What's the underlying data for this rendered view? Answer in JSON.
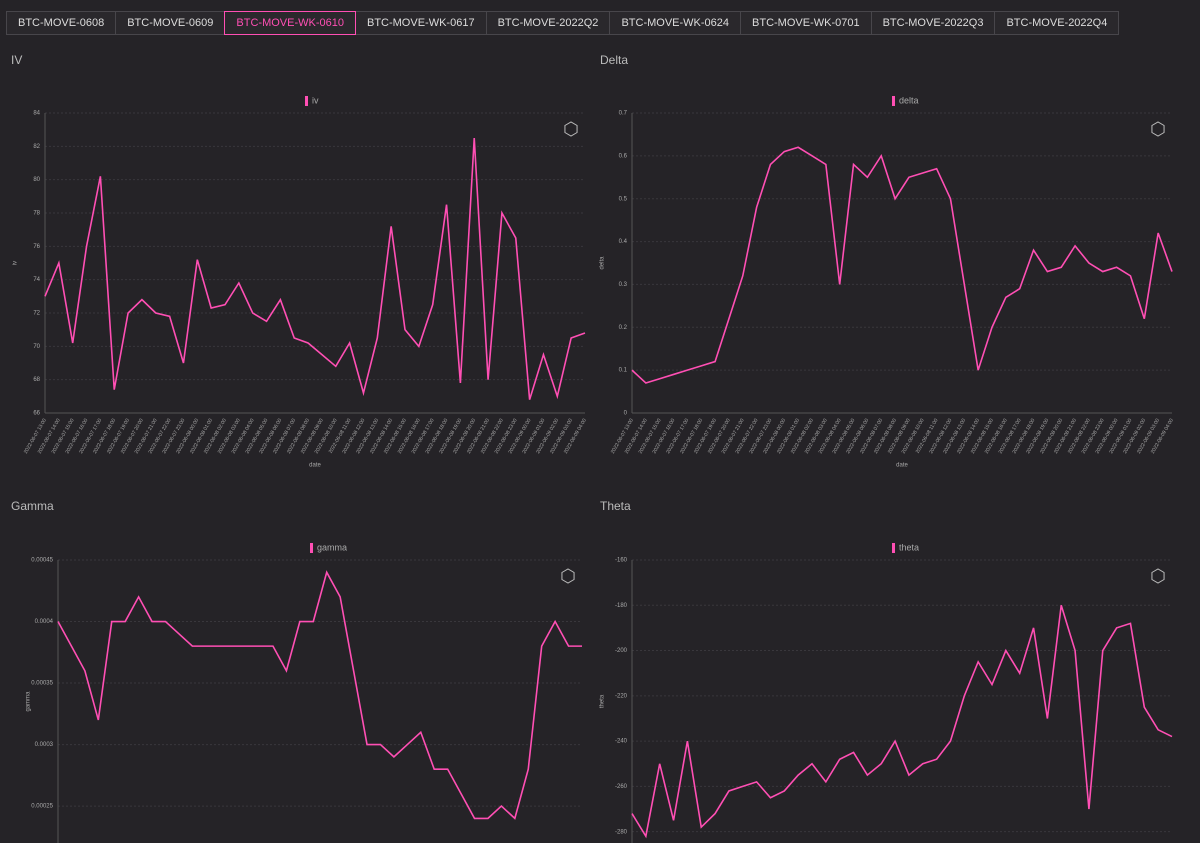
{
  "tabs": [
    "BTC-MOVE-0608",
    "BTC-MOVE-0609",
    "BTC-MOVE-WK-0610",
    "BTC-MOVE-WK-0617",
    "BTC-MOVE-2022Q2",
    "BTC-MOVE-WK-0624",
    "BTC-MOVE-WK-0701",
    "BTC-MOVE-2022Q3",
    "BTC-MOVE-2022Q4"
  ],
  "active_tab": 2,
  "chart_data": [
    {
      "type": "line",
      "title": "IV",
      "x_label": "date",
      "y_label": "iv",
      "categories": [
        "2022-06-07 13:00",
        "2022-06-07 14:00",
        "2022-06-07 15:00",
        "2022-06-07 16:00",
        "2022-06-07 17:00",
        "2022-06-07 18:00",
        "2022-06-07 19:00",
        "2022-06-07 20:00",
        "2022-06-07 21:00",
        "2022-06-07 22:00",
        "2022-06-07 23:00",
        "2022-06-08 00:00",
        "2022-06-08 01:00",
        "2022-06-08 02:00",
        "2022-06-08 03:00",
        "2022-06-08 04:00",
        "2022-06-08 05:00",
        "2022-06-08 06:00",
        "2022-06-08 07:00",
        "2022-06-08 08:00",
        "2022-06-08 09:00",
        "2022-06-08 10:00",
        "2022-06-08 11:00",
        "2022-06-08 12:00",
        "2022-06-08 13:00",
        "2022-06-08 14:00",
        "2022-06-08 15:00",
        "2022-06-08 16:00",
        "2022-06-08 17:00",
        "2022-06-08 18:00",
        "2022-06-08 19:00",
        "2022-06-08 20:00",
        "2022-06-08 21:00",
        "2022-06-08 22:00",
        "2022-06-08 23:00",
        "2022-06-09 00:00",
        "2022-06-09 01:00",
        "2022-06-09 02:00",
        "2022-06-09 03:00",
        "2022-06-09 04:00"
      ],
      "series": [
        {
          "name": "iv",
          "color": "#ff4fb4",
          "values": [
            73,
            75,
            70.2,
            76,
            80.2,
            67.4,
            72,
            72.8,
            72,
            71.8,
            69,
            75.2,
            72.3,
            72.5,
            73.8,
            72,
            71.5,
            72.8,
            70.5,
            70.2,
            69.5,
            68.8,
            70.2,
            67.2,
            70.5,
            77.2,
            71,
            70,
            72.5,
            78.5,
            67.8,
            82.5,
            68,
            78,
            76.5,
            66.8,
            69.5,
            67,
            70.5,
            70.8
          ]
        }
      ],
      "ylim": [
        66,
        84
      ],
      "yticks": [
        66,
        68,
        70,
        72,
        74,
        76,
        78,
        80,
        82,
        84
      ],
      "grid": true
    },
    {
      "type": "line",
      "title": "Delta",
      "x_label": "date",
      "y_label": "delta",
      "categories": [
        "2022-06-07 13:00",
        "2022-06-07 14:00",
        "2022-06-07 15:00",
        "2022-06-07 16:00",
        "2022-06-07 17:00",
        "2022-06-07 18:00",
        "2022-06-07 19:00",
        "2022-06-07 20:00",
        "2022-06-07 21:00",
        "2022-06-07 22:00",
        "2022-06-07 23:00",
        "2022-06-08 00:00",
        "2022-06-08 01:00",
        "2022-06-08 02:00",
        "2022-06-08 03:00",
        "2022-06-08 04:00",
        "2022-06-08 05:00",
        "2022-06-08 06:00",
        "2022-06-08 07:00",
        "2022-06-08 08:00",
        "2022-06-08 09:00",
        "2022-06-08 10:00",
        "2022-06-08 11:00",
        "2022-06-08 12:00",
        "2022-06-08 13:00",
        "2022-06-08 14:00",
        "2022-06-08 15:00",
        "2022-06-08 16:00",
        "2022-06-08 17:00",
        "2022-06-08 18:00",
        "2022-06-08 19:00",
        "2022-06-08 20:00",
        "2022-06-08 21:00",
        "2022-06-08 22:00",
        "2022-06-08 23:00",
        "2022-06-09 00:00",
        "2022-06-09 01:00",
        "2022-06-09 02:00",
        "2022-06-09 03:00",
        "2022-06-09 04:00"
      ],
      "series": [
        {
          "name": "delta",
          "color": "#ff4fb4",
          "values": [
            0.1,
            0.07,
            0.08,
            0.09,
            0.1,
            0.11,
            0.12,
            0.22,
            0.32,
            0.48,
            0.58,
            0.61,
            0.62,
            0.6,
            0.58,
            0.3,
            0.58,
            0.55,
            0.6,
            0.5,
            0.55,
            0.56,
            0.57,
            0.5,
            0.3,
            0.1,
            0.2,
            0.27,
            0.29,
            0.38,
            0.33,
            0.34,
            0.39,
            0.35,
            0.33,
            0.34,
            0.32,
            0.22,
            0.42,
            0.33
          ]
        }
      ],
      "ylim": [
        0,
        0.7
      ],
      "yticks": [
        0,
        0.1,
        0.2,
        0.3,
        0.4,
        0.5,
        0.6,
        0.7
      ],
      "grid": true
    },
    {
      "type": "line",
      "title": "Gamma",
      "y_label": "gamma",
      "series": [
        {
          "name": "gamma",
          "color": "#ff4fb4",
          "values": [
            0.0004,
            0.00038,
            0.00036,
            0.00032,
            0.0004,
            0.0004,
            0.00042,
            0.0004,
            0.0004,
            0.00039,
            0.00038,
            0.00038,
            0.00038,
            0.00038,
            0.00038,
            0.00038,
            0.00038,
            0.00036,
            0.0004,
            0.0004,
            0.00044,
            0.00042,
            0.00036,
            0.0003,
            0.0003,
            0.00029,
            0.0003,
            0.00031,
            0.00028,
            0.00028,
            0.00026,
            0.00024,
            0.00024,
            0.00025,
            0.00024,
            0.00028,
            0.00038,
            0.0004,
            0.00038,
            0.00038
          ]
        }
      ],
      "ylim": [
        0.00022,
        0.00045
      ],
      "yticks": [
        0.00025,
        0.0003,
        0.00035,
        0.0004,
        0.00045
      ],
      "grid": true
    },
    {
      "type": "line",
      "title": "Theta",
      "y_label": "theta",
      "series": [
        {
          "name": "theta",
          "color": "#ff4fb4",
          "values": [
            -272,
            -282,
            -250,
            -275,
            -240,
            -278,
            -272,
            -262,
            -260,
            -258,
            -265,
            -262,
            -255,
            -250,
            -258,
            -248,
            -245,
            -255,
            -250,
            -240,
            -255,
            -250,
            -248,
            -240,
            -220,
            -205,
            -215,
            -200,
            -210,
            -190,
            -230,
            -180,
            -200,
            -270,
            -200,
            -190,
            -188,
            -225,
            -235,
            -238
          ]
        }
      ],
      "ylim": [
        -285,
        -160
      ],
      "yticks": [
        -280,
        -260,
        -240,
        -220,
        -200,
        -180,
        -160
      ],
      "grid": true
    }
  ]
}
